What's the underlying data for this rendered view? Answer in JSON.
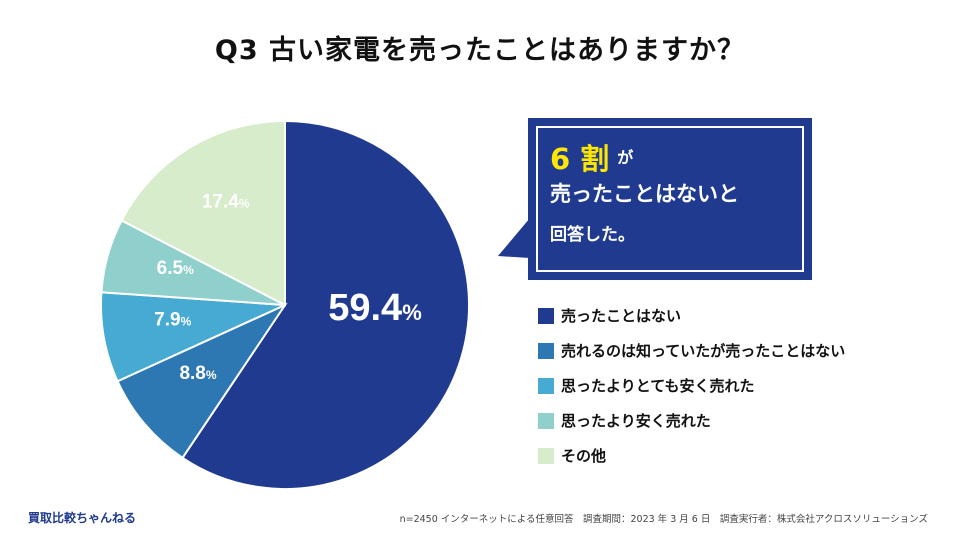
{
  "title": "Q3  古い家電を売ったことはありますか？",
  "chart_data": {
    "type": "pie",
    "title": "Q3  古い家電を売ったことはありますか？",
    "start": "12 o'clock, clockwise",
    "slices": [
      {
        "label": "売ったことはない",
        "value": 59.4,
        "color": "#1f3a8f",
        "display": "59.4"
      },
      {
        "label": "売れるのは知っていたが売ったことはない",
        "value": 8.8,
        "color": "#2d78b3",
        "display": "8.8"
      },
      {
        "label": "思ったよりとても安く売れた",
        "value": 7.9,
        "color": "#46aad2",
        "display": "7.9"
      },
      {
        "label": "思ったより安く売れた",
        "value": 6.5,
        "color": "#8fcfcc",
        "display": "6.5"
      },
      {
        "label": "その他",
        "value": 17.4,
        "color": "#d7eccb",
        "display": "17.4"
      }
    ],
    "unit": "%"
  },
  "callout": {
    "highlight": "6 割",
    "small": "が",
    "line2": "売ったことはないと",
    "line3": "回答した。",
    "bg_color": "#1f3a8f",
    "highlight_color": "#ffe600"
  },
  "footer": {
    "brand": "買取比較ちゃんねる",
    "note": "n=2450 インターネットによる任意回答　調査期間：2023 年 3 月 6 日　調査実行者：株式会社アクロスソリューションズ"
  }
}
